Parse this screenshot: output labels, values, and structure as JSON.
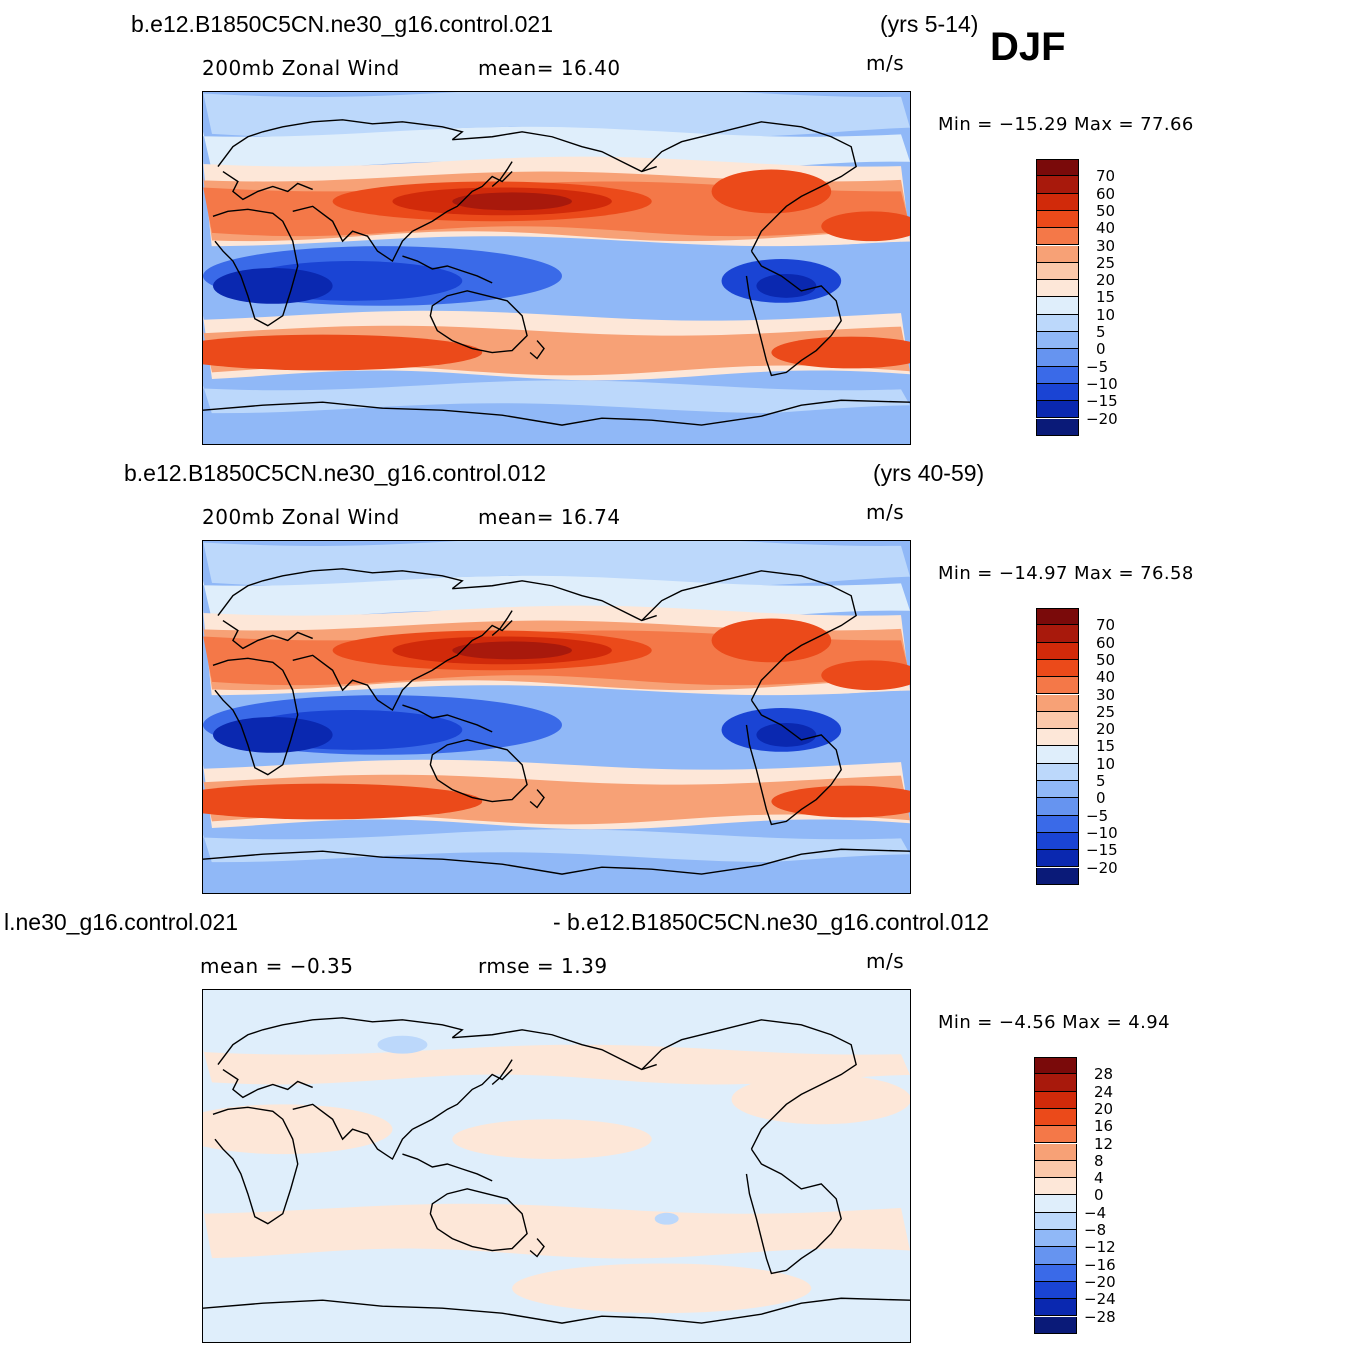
{
  "season": "DJF",
  "panels": [
    {
      "case": "b.e12.B1850C5CN.ne30_g16.control.021",
      "years": "(yrs 5-14)",
      "left_label": "200mb  Zonal Wind",
      "stat_label": "mean=  16.40",
      "units": "m/s",
      "minmax": "Min  = −15.29  Max  =    77.66",
      "colorbar": {
        "labels": [
          "70",
          "60",
          "50",
          "40",
          "30",
          "25",
          "20",
          "15",
          "10",
          "5",
          "0",
          "−5",
          "−10",
          "−15",
          "−20"
        ],
        "colors": [
          "#7a0a0a",
          "#a8190c",
          "#d12a0a",
          "#eb4a1a",
          "#f47848",
          "#f7a176",
          "#fbc8aa",
          "#fde7d8",
          "#dfeefb",
          "#bcd8fb",
          "#90b8f7",
          "#6694f0",
          "#3a6ae8",
          "#1a44d4",
          "#0a28b0",
          "#0a1a78"
        ]
      },
      "map": {
        "style": "full"
      }
    },
    {
      "case": "b.e12.B1850C5CN.ne30_g16.control.012",
      "years": "(yrs 40-59)",
      "left_label": "200mb  Zonal Wind",
      "stat_label": "mean=  16.74",
      "units": "m/s",
      "minmax": "Min  = −14.97  Max  =    76.58",
      "colorbar": {
        "labels": [
          "70",
          "60",
          "50",
          "40",
          "30",
          "25",
          "20",
          "15",
          "10",
          "5",
          "0",
          "−5",
          "−10",
          "−15",
          "−20"
        ],
        "colors": [
          "#7a0a0a",
          "#a8190c",
          "#d12a0a",
          "#eb4a1a",
          "#f47848",
          "#f7a176",
          "#fbc8aa",
          "#fde7d8",
          "#dfeefb",
          "#bcd8fb",
          "#90b8f7",
          "#6694f0",
          "#3a6ae8",
          "#1a44d4",
          "#0a28b0",
          "#0a1a78"
        ]
      },
      "map": {
        "style": "full"
      }
    },
    {
      "case": "l.ne30_g16.control.021",
      "case_right": "- b.e12.B1850C5CN.ne30_g16.control.012",
      "left_label": "mean  =    −0.35",
      "stat_label": "rmse  =     1.39",
      "units": "m/s",
      "minmax": "Min  =    −4.56  Max  =      4.94",
      "colorbar": {
        "labels": [
          "28",
          "24",
          "20",
          "16",
          "12",
          "8",
          "4",
          "0",
          "−4",
          "−8",
          "−12",
          "−16",
          "−20",
          "−24",
          "−28"
        ],
        "colors": [
          "#7a0a0a",
          "#a8190c",
          "#d12a0a",
          "#eb4a1a",
          "#f47848",
          "#f7a176",
          "#fbc8aa",
          "#fde7d8",
          "#dfeefb",
          "#bcd8fb",
          "#90b8f7",
          "#6694f0",
          "#3a6ae8",
          "#1a44d4",
          "#0a28b0",
          "#0a1a78"
        ]
      },
      "map": {
        "style": "diff"
      }
    }
  ]
}
